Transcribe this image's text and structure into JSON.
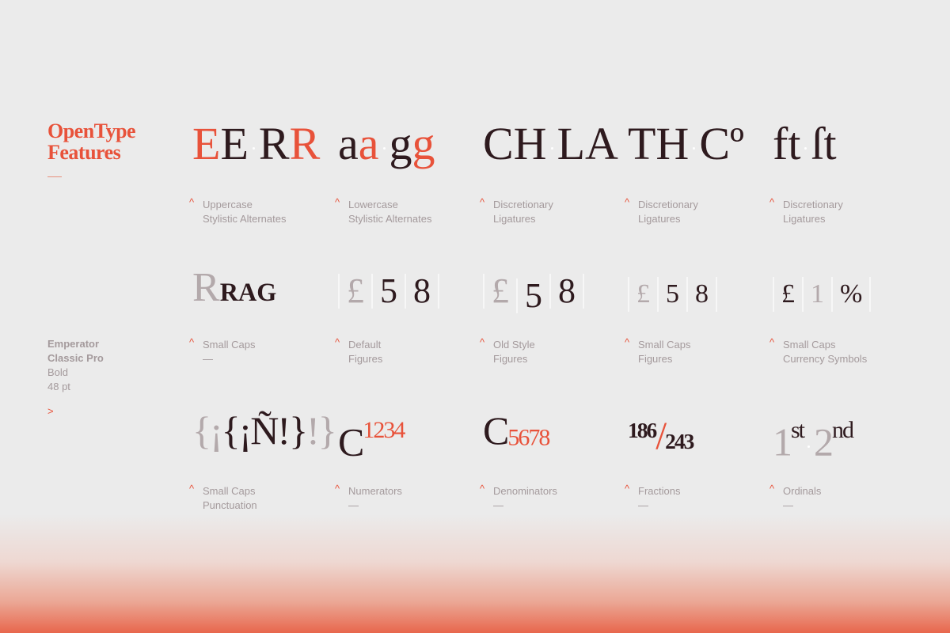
{
  "sidebar": {
    "title_line1": "OpenType",
    "title_line2": "Features",
    "font_name_line1": "Emperator",
    "font_name_line2": "Classic Pro",
    "weight": "Bold",
    "size": "48 pt",
    "next_arrow": ">"
  },
  "colors": {
    "accent": "#e8523a",
    "ink": "#2e1a1e",
    "muted": "#a49a9c",
    "background": "#ebebeb"
  },
  "rows": [
    [
      {
        "label1": "Uppercase",
        "label2": "Stylistic Alternates",
        "specimen": [
          {
            "t": "E",
            "c": "red"
          },
          {
            "t": "E",
            "c": "dark"
          },
          {
            "t": "·",
            "c": "dot"
          },
          {
            "t": "R",
            "c": "dark"
          },
          {
            "t": "R",
            "c": "red"
          }
        ]
      },
      {
        "label1": "Lowercase",
        "label2": "Stylistic Alternates",
        "specimen": [
          {
            "t": "a",
            "c": "dark"
          },
          {
            "t": "a",
            "c": "red"
          },
          {
            "t": "·",
            "c": "dot"
          },
          {
            "t": "g",
            "c": "dark"
          },
          {
            "t": "g",
            "c": "red"
          }
        ]
      },
      {
        "label1": "Discretionary",
        "label2": "Ligatures",
        "specimen": [
          {
            "t": "CH",
            "c": "dark"
          },
          {
            "t": "·",
            "c": "dot"
          },
          {
            "t": "LA",
            "c": "dark"
          }
        ]
      },
      {
        "label1": "Discretionary",
        "label2": "Ligatures",
        "specimen": [
          {
            "t": "TH",
            "c": "dark"
          },
          {
            "t": "·",
            "c": "dot"
          },
          {
            "t": "Cº",
            "c": "dark"
          }
        ]
      },
      {
        "label1": "Discretionary",
        "label2": "Ligatures",
        "specimen": [
          {
            "t": "ft",
            "c": "dark"
          },
          {
            "t": "·",
            "c": "dot"
          },
          {
            "t": "ſt",
            "c": "dark"
          }
        ]
      }
    ],
    [
      {
        "label1": "Small Caps",
        "label2": "—",
        "specimen": [
          {
            "t": "R",
            "c": "gray"
          },
          {
            "t": "RAG",
            "c": "dark smallcaps"
          }
        ]
      },
      {
        "label1": "Default",
        "label2": "Figures",
        "figures": [
          {
            "t": "£",
            "c": "gray"
          },
          {
            "t": "5",
            "c": "dark"
          },
          {
            "t": "8",
            "c": "dark"
          }
        ]
      },
      {
        "label1": "Old Style",
        "label2": "Figures",
        "figures": [
          {
            "t": "£",
            "c": "gray"
          },
          {
            "t": "5",
            "c": "dark"
          },
          {
            "t": "8",
            "c": "dark"
          }
        ]
      },
      {
        "label1": "Small Caps",
        "label2": "Figures",
        "figures": [
          {
            "t": "£",
            "c": "gray"
          },
          {
            "t": "5",
            "c": "dark"
          },
          {
            "t": "8",
            "c": "dark"
          }
        ]
      },
      {
        "label1": "Small Caps",
        "label2": "Currency Symbols",
        "figures": [
          {
            "t": "£",
            "c": "dark"
          },
          {
            "t": "1",
            "c": "gray"
          },
          {
            "t": "%",
            "c": "dark"
          }
        ]
      }
    ],
    [
      {
        "label1": "Small Caps",
        "label2": "Punctuation",
        "specimen": [
          {
            "t": "{¡",
            "c": "gray"
          },
          {
            "t": "{¡Ñ!}",
            "c": "dark"
          },
          {
            "t": "!}",
            "c": "gray"
          }
        ]
      },
      {
        "label1": "Numerators",
        "label2": "—",
        "specimen": [
          {
            "t": "C",
            "c": "dark"
          },
          {
            "t": "1234",
            "c": "red sup"
          }
        ]
      },
      {
        "label1": "Denominators",
        "label2": "—",
        "specimen": [
          {
            "t": "C",
            "c": "dark"
          },
          {
            "t": "5678",
            "c": "red sub"
          }
        ]
      },
      {
        "label1": "Fractions",
        "label2": "—",
        "specimen": [
          {
            "t": "186",
            "c": "dark fsup"
          },
          {
            "t": "/",
            "c": "red"
          },
          {
            "t": "243",
            "c": "dark fsub"
          }
        ]
      },
      {
        "label1": "Ordinals",
        "label2": "—",
        "specimen": [
          {
            "t": "1",
            "c": "gray"
          },
          {
            "t": "st",
            "c": "dark sup"
          },
          {
            "t": "·",
            "c": "dot"
          },
          {
            "t": "2",
            "c": "gray"
          },
          {
            "t": "nd",
            "c": "dark sup"
          }
        ]
      }
    ]
  ]
}
